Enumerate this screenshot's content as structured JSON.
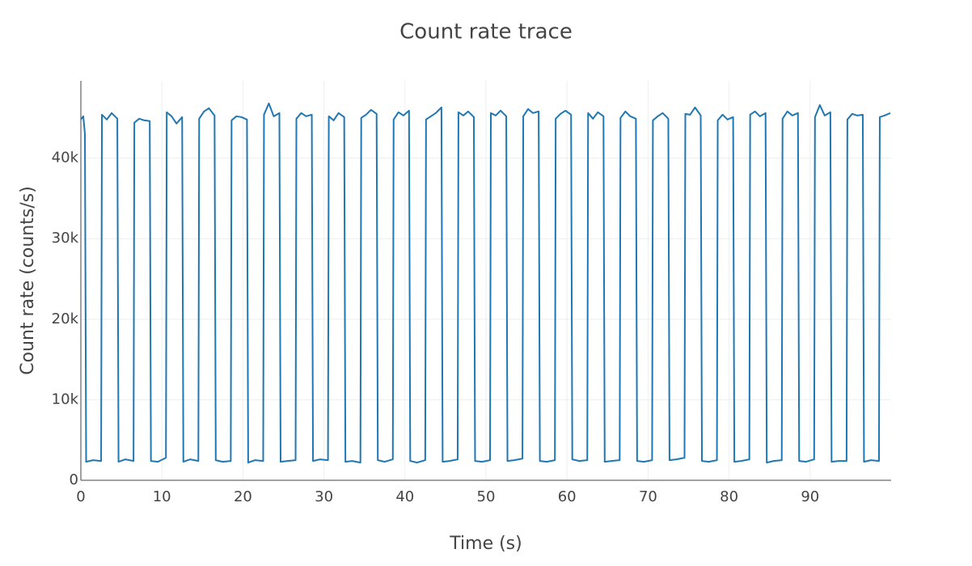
{
  "chart_data": {
    "type": "line",
    "title": "Count rate trace",
    "x_label": "Time (s)",
    "y_label": "Count rate (counts/s)",
    "xlim": [
      0,
      100
    ],
    "xticks": [
      0,
      10,
      20,
      30,
      40,
      50,
      60,
      70,
      80,
      90
    ],
    "ylim": [
      0,
      49600
    ],
    "yticks": [
      0,
      {
        "value": 10000,
        "label": "10k"
      },
      {
        "value": 20000,
        "label": "20k"
      },
      {
        "value": 30000,
        "label": "30k"
      },
      {
        "value": 40000,
        "label": "40k"
      }
    ],
    "grid": true,
    "x": [
      0,
      0.3,
      0.5,
      0.65,
      1.5,
      2.5,
      2.6,
      3.2,
      3.8,
      4.5,
      4.65,
      5.5,
      6.5,
      6.6,
      7.2,
      7.8,
      8.5,
      8.65,
      9.5,
      10.5,
      10.6,
      11.2,
      11.8,
      12.5,
      12.65,
      13.5,
      14.5,
      14.6,
      15.2,
      15.8,
      16.5,
      16.65,
      17.5,
      18.5,
      18.6,
      19.2,
      19.8,
      20.5,
      20.65,
      21.5,
      22.5,
      22.6,
      23.2,
      23.8,
      24.5,
      24.65,
      25.5,
      26.5,
      26.6,
      27.2,
      27.8,
      28.5,
      28.65,
      29.5,
      30.5,
      30.6,
      31.2,
      31.8,
      32.5,
      32.65,
      33.5,
      34.5,
      34.6,
      35.2,
      35.8,
      36.5,
      36.65,
      37.5,
      38.5,
      38.6,
      39.2,
      39.8,
      40.5,
      40.65,
      41.5,
      42.5,
      42.6,
      43.2,
      43.8,
      44.5,
      44.65,
      45.5,
      46.5,
      46.6,
      47.2,
      47.8,
      48.5,
      48.65,
      49.5,
      50.5,
      50.6,
      51.2,
      51.8,
      52.5,
      52.65,
      53.5,
      54.5,
      54.6,
      55.2,
      55.8,
      56.5,
      56.65,
      57.5,
      58.5,
      58.6,
      59.2,
      59.8,
      60.5,
      60.65,
      61.5,
      62.5,
      62.6,
      63.2,
      63.8,
      64.5,
      64.65,
      65.5,
      66.5,
      66.6,
      67.2,
      67.8,
      68.5,
      68.65,
      69.5,
      70.5,
      70.6,
      71.2,
      71.8,
      72.5,
      72.65,
      73.5,
      74.5,
      74.6,
      75.2,
      75.8,
      76.5,
      76.65,
      77.5,
      78.5,
      78.6,
      79.2,
      79.8,
      80.5,
      80.65,
      81.5,
      82.5,
      82.6,
      83.2,
      83.8,
      84.5,
      84.65,
      85.5,
      86.5,
      86.6,
      87.2,
      87.8,
      88.5,
      88.65,
      89.5,
      90.5,
      90.6,
      91.2,
      91.8,
      92.5,
      92.65,
      93.5,
      94.5,
      94.6,
      95.2,
      95.8,
      96.5,
      96.65,
      97.5,
      98.5,
      98.6,
      99.2,
      99.9
    ],
    "series": [
      {
        "name": "Count rate",
        "color": "#1f77b4",
        "values": [
          44800,
          45200,
          43000,
          2300,
          2500,
          2400,
          45400,
          44800,
          45600,
          44900,
          2300,
          2600,
          2400,
          44400,
          44900,
          44700,
          44600,
          2400,
          2300,
          2800,
          45700,
          45200,
          44300,
          45100,
          2300,
          2600,
          2400,
          44900,
          45800,
          46200,
          45300,
          2500,
          2300,
          2400,
          44700,
          45200,
          45100,
          44800,
          2200,
          2500,
          2400,
          45400,
          46800,
          45200,
          45600,
          2300,
          2400,
          2500,
          44900,
          45600,
          45200,
          45400,
          2400,
          2600,
          2500,
          45200,
          44700,
          45600,
          45100,
          2300,
          2400,
          2200,
          45000,
          45400,
          46000,
          45500,
          2500,
          2300,
          2600,
          44800,
          45700,
          45300,
          45900,
          2400,
          2200,
          2500,
          44800,
          45200,
          45600,
          46300,
          2300,
          2400,
          2600,
          45700,
          45300,
          45800,
          45100,
          2400,
          2300,
          2500,
          45600,
          45300,
          45900,
          45200,
          2400,
          2500,
          2700,
          45200,
          46100,
          45600,
          45800,
          2400,
          2300,
          2500,
          44900,
          45500,
          45900,
          45400,
          2600,
          2400,
          2500,
          45600,
          44900,
          45700,
          45200,
          2300,
          2400,
          2500,
          45000,
          45800,
          45200,
          44900,
          2400,
          2300,
          2500,
          44700,
          45200,
          45600,
          44900,
          2500,
          2600,
          2800,
          45500,
          45400,
          46300,
          45300,
          2400,
          2300,
          2500,
          44700,
          45400,
          44800,
          45100,
          2300,
          2400,
          2600,
          45400,
          45800,
          45200,
          45600,
          2200,
          2400,
          2500,
          44900,
          45800,
          45300,
          45600,
          2400,
          2300,
          2600,
          45100,
          46600,
          45300,
          45700,
          2300,
          2400,
          2400,
          44800,
          45500,
          45300,
          45400,
          2300,
          2500,
          2400,
          45100,
          45300,
          45600
        ]
      }
    ]
  }
}
